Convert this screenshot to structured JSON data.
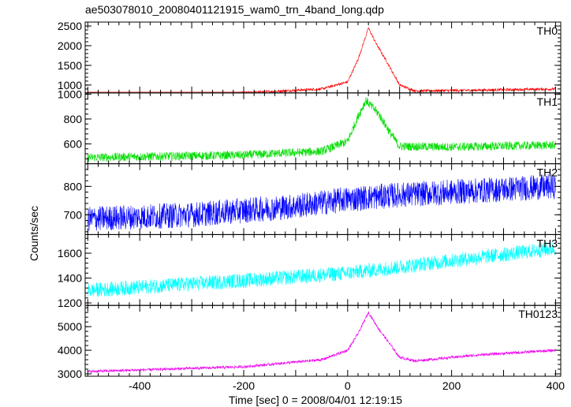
{
  "chart_data": {
    "type": "line",
    "title": "ae503078010_20080401121915_wam0_trn_4band_long.qdp",
    "xlabel": "Time [sec] 0 = 2008/04/01 12:19:15",
    "ylabel": "Counts/sec",
    "xlim": [
      -505,
      410
    ],
    "x_ticks": [
      -400,
      -200,
      0,
      200,
      400
    ],
    "grid": false,
    "panels": [
      {
        "name": "TH0",
        "color": "#ff0000",
        "ylim": [
          800,
          2600
        ],
        "y_ticks": [
          1000,
          1500,
          2000,
          2500
        ],
        "noise": 35,
        "profile": [
          [
            -500,
            720
          ],
          [
            -200,
            800
          ],
          [
            -50,
            900
          ],
          [
            0,
            1080
          ],
          [
            20,
            1650
          ],
          [
            40,
            2450
          ],
          [
            55,
            2050
          ],
          [
            75,
            1600
          ],
          [
            100,
            1000
          ],
          [
            130,
            850
          ],
          [
            250,
            870
          ],
          [
            400,
            900
          ]
        ]
      },
      {
        "name": "TH1",
        "color": "#00dd00",
        "ylim": [
          440,
          1010
        ],
        "y_ticks": [
          600,
          800,
          1000
        ],
        "noise": 35,
        "profile": [
          [
            -500,
            490
          ],
          [
            -200,
            510
          ],
          [
            -50,
            540
          ],
          [
            0,
            620
          ],
          [
            20,
            820
          ],
          [
            35,
            950
          ],
          [
            60,
            840
          ],
          [
            80,
            700
          ],
          [
            100,
            580
          ],
          [
            200,
            575
          ],
          [
            400,
            590
          ]
        ]
      },
      {
        "name": "TH2",
        "color": "#0000ff",
        "ylim": [
          630,
          880
        ],
        "y_ticks": [
          700,
          800
        ],
        "noise": 45,
        "profile": [
          [
            -500,
            685
          ],
          [
            -300,
            700
          ],
          [
            -100,
            730
          ],
          [
            0,
            755
          ],
          [
            100,
            770
          ],
          [
            250,
            785
          ],
          [
            400,
            800
          ]
        ]
      },
      {
        "name": "TH3",
        "color": "#00ffff",
        "ylim": [
          1180,
          1750
        ],
        "y_ticks": [
          1200,
          1400,
          1600
        ],
        "noise": 60,
        "profile": [
          [
            -500,
            1300
          ],
          [
            -200,
            1380
          ],
          [
            0,
            1440
          ],
          [
            200,
            1540
          ],
          [
            400,
            1640
          ]
        ]
      },
      {
        "name": "TH0123",
        "color": "#ee00ee",
        "ylim": [
          2900,
          5900
        ],
        "y_ticks": [
          3000,
          4000,
          5000
        ],
        "noise": 60,
        "profile": [
          [
            -500,
            3100
          ],
          [
            -200,
            3300
          ],
          [
            -50,
            3600
          ],
          [
            0,
            4000
          ],
          [
            20,
            4700
          ],
          [
            40,
            5600
          ],
          [
            60,
            4900
          ],
          [
            80,
            4300
          ],
          [
            100,
            3700
          ],
          [
            130,
            3550
          ],
          [
            250,
            3800
          ],
          [
            400,
            4000
          ]
        ]
      }
    ]
  }
}
